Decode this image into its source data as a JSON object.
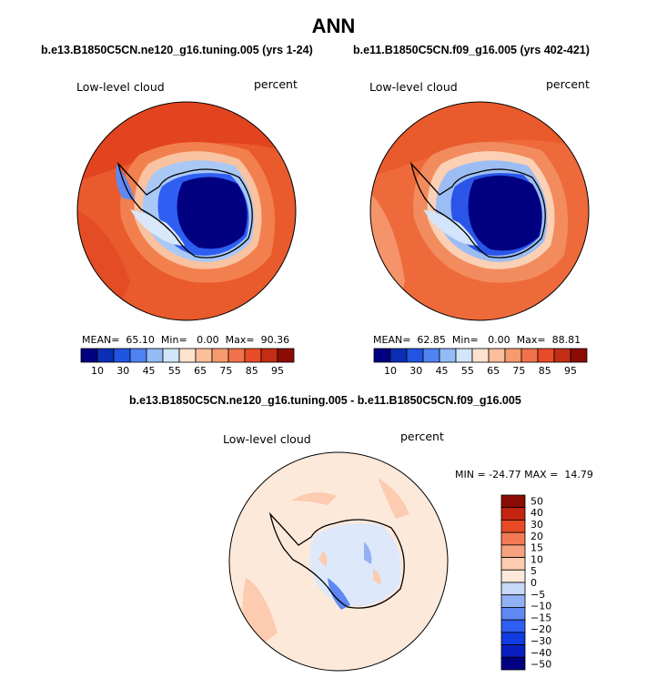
{
  "title": "ANN",
  "panels": [
    {
      "case": "b.e13.B1850C5CN.ne120_g16.tuning.005 (yrs 1-24)",
      "variable": "Low-level cloud",
      "units": "percent",
      "stats": {
        "mean_label": "MEAN=",
        "mean": "65.10",
        "min_label": "Min=",
        "min": "0.00",
        "max_label": "Max=",
        "max": "90.36"
      }
    },
    {
      "case": "b.e11.B1850C5CN.f09_g16.005 (yrs 402-421)",
      "variable": "Low-level cloud",
      "units": "percent",
      "stats": {
        "mean_label": "MEAN=",
        "mean": "62.85",
        "min_label": "Min=",
        "min": "0.00",
        "max_label": "Max=",
        "max": "88.81"
      }
    }
  ],
  "colorbar_top": {
    "colors": [
      "#000080",
      "#0a2fb5",
      "#1f55e0",
      "#4f82f2",
      "#93bcf5",
      "#d2e5fb",
      "#fde3cf",
      "#fbbf9b",
      "#f79a6e",
      "#f1724a",
      "#e84b27",
      "#c42d15",
      "#8a0c05"
    ],
    "labels": [
      "10",
      "30",
      "45",
      "55",
      "65",
      "75",
      "85",
      "95"
    ]
  },
  "diff": {
    "title": "b.e13.B1850C5CN.ne120_g16.tuning.005 - b.e11.B1850C5CN.f09_g16.005",
    "variable": "Low-level cloud",
    "units": "percent",
    "stats": "MIN = -24.77 MAX =  14.79",
    "colorbar": {
      "colors": [
        "#000080",
        "#0a1fbf",
        "#0f3be0",
        "#2f5ef2",
        "#5f88f2",
        "#91b1f2",
        "#c6d9f7",
        "#fde9da",
        "#fccbb0",
        "#f7a27f",
        "#f17a55",
        "#e84a25",
        "#c42412",
        "#8a0c05"
      ],
      "labels": [
        "50",
        "40",
        "30",
        "20",
        "15",
        "10",
        "5",
        "0",
        "−5",
        "−10",
        "−15",
        "−20",
        "−30",
        "−40",
        "−50"
      ]
    }
  }
}
